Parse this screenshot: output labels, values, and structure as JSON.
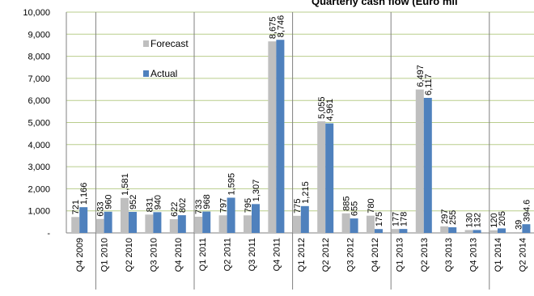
{
  "chart_data": {
    "type": "bar",
    "title": "Quarterly cash flow (Euro mil",
    "categories": [
      "Q4 2009",
      "Q1 2010",
      "Q2 2010",
      "Q3 2010",
      "Q4 2010",
      "Q1 2011",
      "Q2 2011",
      "Q3 2011",
      "Q4 2011",
      "Q1 2012",
      "Q2 2012",
      "Q3 2012",
      "Q4 2012",
      "Q1 2013",
      "Q2 2013",
      "Q3 2013",
      "Q4 2013",
      "Q1 2014",
      "Q2 2014"
    ],
    "forecast_labels": [
      "721",
      "633",
      "1,581",
      "831",
      "622",
      "733",
      "797",
      "795",
      "8,675",
      "775",
      "5,055",
      "885",
      "780",
      "177",
      "6,497",
      "297",
      "130",
      "120",
      "39"
    ],
    "actual_labels": [
      "1,166",
      "960",
      "952",
      "940",
      "802",
      "968",
      "1,595",
      "1,307",
      "8,746",
      "1,215",
      "4,961",
      "655",
      "175",
      "178",
      "6,117",
      "255",
      "132",
      "205",
      "394.6"
    ],
    "series": [
      {
        "name": "Forecast",
        "color": "#bfbfbf",
        "values": [
          721,
          633,
          1581,
          831,
          622,
          733,
          797,
          795,
          8675,
          775,
          5055,
          885,
          780,
          177,
          6497,
          297,
          130,
          120,
          39
        ]
      },
      {
        "name": "Actual",
        "color": "#4f81bd",
        "values": [
          1166,
          960,
          952,
          940,
          802,
          968,
          1595,
          1307,
          8746,
          1215,
          4961,
          655,
          175,
          178,
          6117,
          255,
          132,
          205,
          394.6
        ]
      }
    ],
    "ylim": [
      0,
      10000
    ],
    "y_ticks": [
      {
        "v": 0,
        "label": "-"
      },
      {
        "v": 1000,
        "label": "1,000"
      },
      {
        "v": 2000,
        "label": "2,000"
      },
      {
        "v": 3000,
        "label": "3,000"
      },
      {
        "v": 4000,
        "label": "4,000"
      },
      {
        "v": 5000,
        "label": "5,000"
      },
      {
        "v": 6000,
        "label": "6,000"
      },
      {
        "v": 7000,
        "label": "7,000"
      },
      {
        "v": 8000,
        "label": "8,000"
      },
      {
        "v": 9000,
        "label": "9,000"
      },
      {
        "v": 10000,
        "label": "10,000"
      }
    ],
    "grid": true,
    "grid_color": "#b9cd8c",
    "year_separators_after": [
      "Q4 2009",
      "Q4 2010",
      "Q4 2011",
      "Q4 2012",
      "Q4 2013"
    ],
    "legend_position": "upper-left inside"
  }
}
